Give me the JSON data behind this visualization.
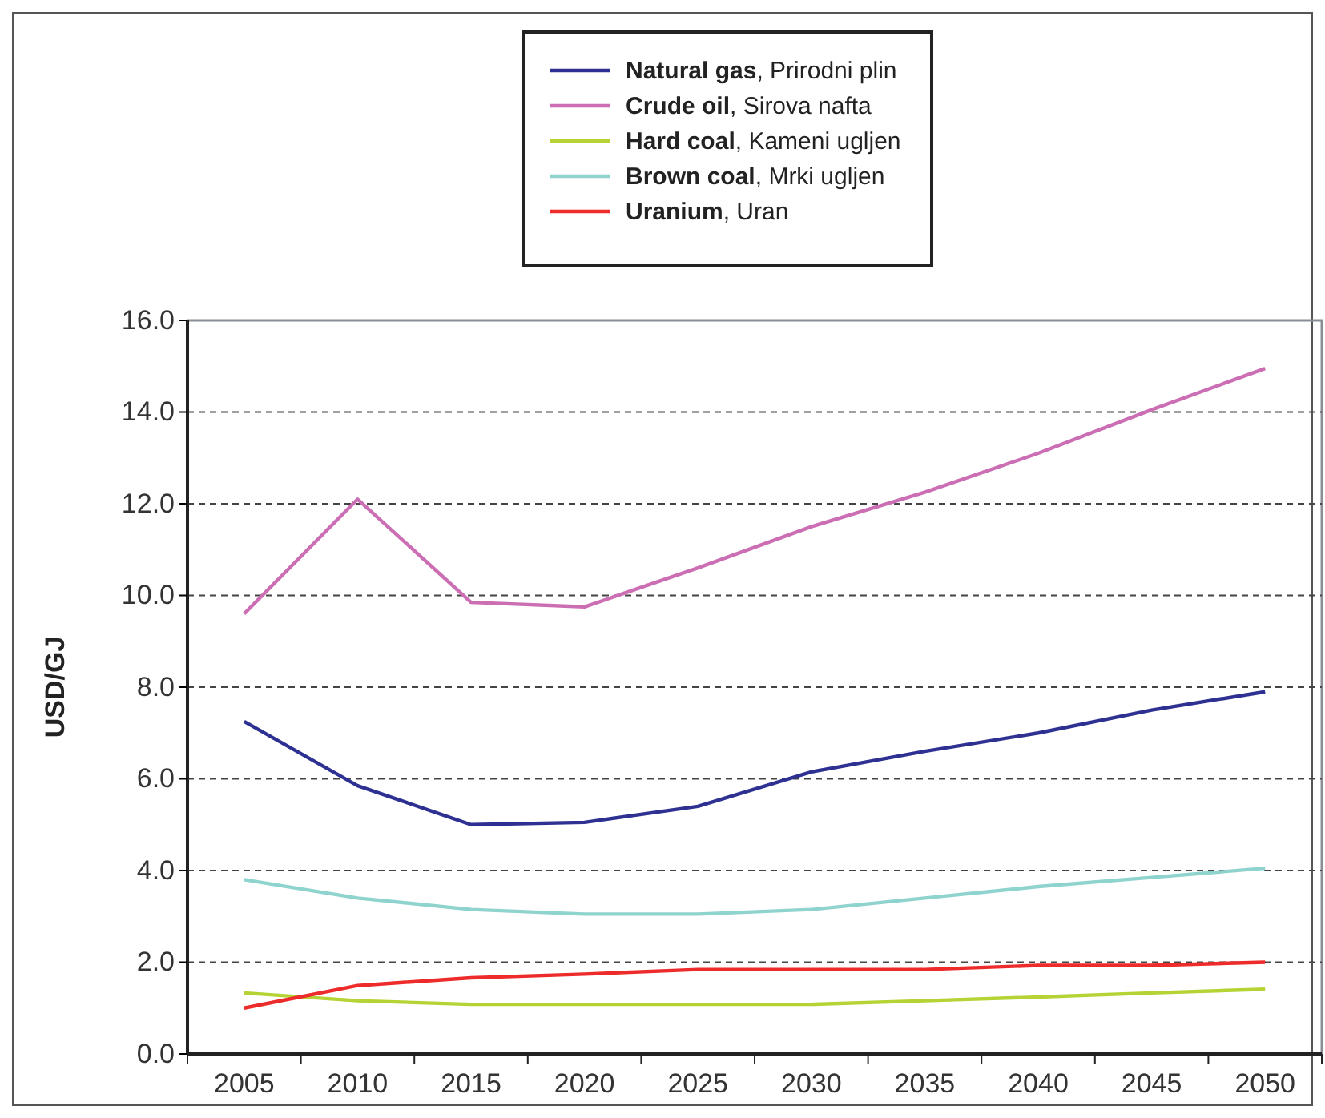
{
  "chart_data": {
    "type": "line",
    "ylabel": "USD/GJ",
    "categories": [
      "2005",
      "2010",
      "2015",
      "2020",
      "2025",
      "2030",
      "2035",
      "2040",
      "2045",
      "2050"
    ],
    "series": [
      {
        "name": "Natural gas, Prirodni plin",
        "color": "#2e3192",
        "values": [
          7.25,
          5.85,
          5.0,
          5.05,
          5.4,
          6.15,
          6.6,
          7.0,
          7.5,
          7.9
        ]
      },
      {
        "name": "Crude oil, Sirova nafta",
        "color": "#cc6eb4",
        "values": [
          9.6,
          12.1,
          9.85,
          9.75,
          10.6,
          11.5,
          12.25,
          13.1,
          14.05,
          14.95
        ]
      },
      {
        "name": "Hard coal, Kameni ugljen",
        "color": "#b5d334",
        "values": [
          1.33,
          1.16,
          1.08,
          1.08,
          1.08,
          1.08,
          1.16,
          1.24,
          1.33,
          1.41
        ]
      },
      {
        "name": "Brown coal, Mrki ugljen",
        "color": "#8fd3cf",
        "values": [
          3.8,
          3.4,
          3.15,
          3.05,
          3.05,
          3.15,
          3.4,
          3.65,
          3.85,
          4.05
        ]
      },
      {
        "name": "Uranium, Uran",
        "color": "#ed2b2b",
        "values": [
          1.0,
          1.49,
          1.66,
          1.74,
          1.84,
          1.84,
          1.84,
          1.93,
          1.93,
          2.0
        ]
      }
    ],
    "ylim": [
      0,
      16
    ],
    "yticks": [
      {
        "value": 0,
        "label": "0.0"
      },
      {
        "value": 2,
        "label": "2.0"
      },
      {
        "value": 4,
        "label": "4.0"
      },
      {
        "value": 6,
        "label": "6.0"
      },
      {
        "value": 8,
        "label": "8.0"
      },
      {
        "value": 10,
        "label": "10.0"
      },
      {
        "value": 12,
        "label": "12.0"
      },
      {
        "value": 14,
        "label": "14.0"
      },
      {
        "value": 16,
        "label": "16.0"
      }
    ],
    "grid": "y",
    "legend": "top",
    "line_style": "solid",
    "marker": "none"
  }
}
